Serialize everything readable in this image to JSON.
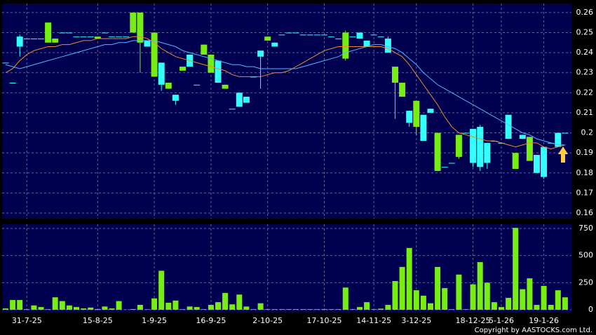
{
  "chart_data": [
    {
      "type": "candlestick",
      "up_color": "#33ffff",
      "down_color": "#77ee11",
      "open": [
        0.235,
        0.225,
        0.243,
        0.247,
        0.247,
        0.247,
        0.255,
        0.247,
        0.25,
        0.25,
        0.248,
        0.248,
        0.248,
        0.248,
        0.25,
        0.248,
        0.248,
        0.248,
        0.26,
        0.26,
        0.243,
        0.25,
        0.224,
        0.225,
        0.216,
        0.233,
        0.233,
        0.224,
        0.244,
        0.239,
        0.225,
        0.224,
        0.212,
        0.213,
        0.215,
        0.228,
        0.238,
        0.248,
        0.243,
        0.249,
        0.25,
        0.25,
        0.249,
        0.249,
        0.249,
        0.249,
        0.248,
        0.247,
        0.25,
        0.248,
        0.247,
        0.243,
        0.249,
        0.248,
        0.24,
        0.233,
        0.225,
        0.205,
        0.216,
        0.196,
        0.21,
        0.2,
        0.183,
        0.185,
        0.199,
        0.2,
        0.185,
        0.183,
        0.185,
        0.196,
        0.195,
        0.197,
        0.19,
        0.197,
        0.198,
        0.18,
        0.178,
        0.195,
        0.193,
        0.2
      ],
      "high": [
        0.235,
        0.225,
        0.249,
        0.247,
        0.247,
        0.247,
        0.255,
        0.247,
        0.25,
        0.25,
        0.248,
        0.248,
        0.248,
        0.248,
        0.25,
        0.248,
        0.248,
        0.248,
        0.26,
        0.26,
        0.246,
        0.25,
        0.235,
        0.225,
        0.219,
        0.233,
        0.239,
        0.224,
        0.244,
        0.239,
        0.236,
        0.224,
        0.212,
        0.22,
        0.218,
        0.228,
        0.241,
        0.248,
        0.245,
        0.249,
        0.25,
        0.25,
        0.249,
        0.249,
        0.249,
        0.249,
        0.248,
        0.247,
        0.251,
        0.248,
        0.25,
        0.246,
        0.249,
        0.248,
        0.248,
        0.233,
        0.225,
        0.211,
        0.216,
        0.209,
        0.212,
        0.2,
        0.183,
        0.185,
        0.199,
        0.2,
        0.202,
        0.204,
        0.195,
        0.196,
        0.195,
        0.209,
        0.19,
        0.199,
        0.198,
        0.189,
        0.193,
        0.195,
        0.2,
        0.2
      ],
      "low": [
        0.235,
        0.225,
        0.238,
        0.247,
        0.247,
        0.247,
        0.245,
        0.245,
        0.25,
        0.25,
        0.248,
        0.248,
        0.248,
        0.247,
        0.25,
        0.248,
        0.248,
        0.248,
        0.25,
        0.23,
        0.243,
        0.228,
        0.221,
        0.222,
        0.214,
        0.231,
        0.233,
        0.224,
        0.239,
        0.23,
        0.225,
        0.222,
        0.212,
        0.213,
        0.215,
        0.228,
        0.222,
        0.246,
        0.243,
        0.249,
        0.25,
        0.25,
        0.249,
        0.249,
        0.249,
        0.249,
        0.248,
        0.247,
        0.236,
        0.248,
        0.247,
        0.243,
        0.249,
        0.248,
        0.24,
        0.207,
        0.218,
        0.203,
        0.199,
        0.196,
        0.21,
        0.181,
        0.183,
        0.185,
        0.187,
        0.2,
        0.183,
        0.181,
        0.182,
        0.196,
        0.195,
        0.197,
        0.182,
        0.197,
        0.186,
        0.18,
        0.177,
        0.195,
        0.193,
        0.2
      ],
      "close": [
        0.235,
        0.225,
        0.248,
        0.247,
        0.247,
        0.247,
        0.245,
        0.245,
        0.25,
        0.25,
        0.248,
        0.248,
        0.248,
        0.247,
        0.25,
        0.248,
        0.248,
        0.248,
        0.25,
        0.245,
        0.246,
        0.228,
        0.235,
        0.222,
        0.219,
        0.231,
        0.239,
        0.224,
        0.239,
        0.23,
        0.236,
        0.222,
        0.212,
        0.22,
        0.218,
        0.228,
        0.241,
        0.246,
        0.245,
        0.249,
        0.25,
        0.25,
        0.249,
        0.249,
        0.249,
        0.249,
        0.248,
        0.247,
        0.237,
        0.248,
        0.25,
        0.246,
        0.249,
        0.248,
        0.247,
        0.225,
        0.218,
        0.211,
        0.203,
        0.209,
        0.212,
        0.181,
        0.183,
        0.185,
        0.188,
        0.2,
        0.202,
        0.203,
        0.195,
        0.196,
        0.195,
        0.209,
        0.182,
        0.199,
        0.186,
        0.189,
        0.193,
        0.195,
        0.2,
        0.2
      ],
      "series": [
        {
          "color": "#f08a2a",
          "values": [
            0.23,
            0.232,
            0.236,
            0.239,
            0.241,
            0.242,
            0.243,
            0.243,
            0.244,
            0.244,
            0.245,
            0.246,
            0.246,
            0.247,
            0.247,
            0.247,
            0.247,
            0.247,
            0.248,
            0.248,
            0.247,
            0.245,
            0.242,
            0.24,
            0.238,
            0.237,
            0.236,
            0.235,
            0.234,
            0.233,
            0.232,
            0.231,
            0.229,
            0.228,
            0.228,
            0.228,
            0.228,
            0.229,
            0.23,
            0.23,
            0.231,
            0.233,
            0.235,
            0.237,
            0.239,
            0.241,
            0.242,
            0.243,
            0.243,
            0.243,
            0.243,
            0.243,
            0.243,
            0.243,
            0.242,
            0.24,
            0.238,
            0.234,
            0.229,
            0.224,
            0.219,
            0.214,
            0.208,
            0.203,
            0.2,
            0.199,
            0.198,
            0.197,
            0.196,
            0.196,
            0.195,
            0.194,
            0.193,
            0.194,
            0.195,
            0.195,
            0.193,
            0.192,
            0.193,
            0.194
          ]
        },
        {
          "color": "#4db8ff",
          "values": [
            0.234,
            0.233,
            0.232,
            0.233,
            0.234,
            0.235,
            0.236,
            0.237,
            0.238,
            0.239,
            0.24,
            0.241,
            0.242,
            0.243,
            0.244,
            0.244,
            0.245,
            0.245,
            0.246,
            0.246,
            0.246,
            0.246,
            0.245,
            0.244,
            0.243,
            0.241,
            0.24,
            0.239,
            0.238,
            0.237,
            0.236,
            0.235,
            0.234,
            0.234,
            0.233,
            0.233,
            0.232,
            0.232,
            0.232,
            0.232,
            0.232,
            0.232,
            0.233,
            0.234,
            0.235,
            0.236,
            0.237,
            0.238,
            0.24,
            0.241,
            0.242,
            0.243,
            0.244,
            0.244,
            0.243,
            0.242,
            0.24,
            0.237,
            0.234,
            0.23,
            0.227,
            0.224,
            0.222,
            0.22,
            0.218,
            0.216,
            0.214,
            0.212,
            0.21,
            0.208,
            0.206,
            0.204,
            0.202,
            0.2,
            0.199,
            0.197,
            0.196,
            0.195,
            0.194,
            0.194
          ]
        }
      ],
      "ylim": [
        0.1572,
        0.2645
      ],
      "yticks": [
        0.16,
        0.17,
        0.18,
        0.19,
        0.2,
        0.21,
        0.22,
        0.23,
        0.24,
        0.25,
        0.26
      ],
      "grid": true
    },
    {
      "type": "bar",
      "color": "#77ee11",
      "categories": [
        null,
        null,
        null,
        "31-7-25",
        null,
        null,
        null,
        null,
        null,
        null,
        null,
        null,
        null,
        "15-8-25",
        null,
        null,
        null,
        null,
        null,
        null,
        null,
        "1-9-25",
        null,
        null,
        null,
        null,
        null,
        null,
        null,
        "16-9-25",
        null,
        null,
        null,
        null,
        null,
        null,
        null,
        "2-10-25",
        null,
        null,
        null,
        null,
        null,
        null,
        null,
        "17-10-25",
        null,
        null,
        null,
        null,
        null,
        null,
        "14-11-25",
        null,
        null,
        null,
        null,
        null,
        "3-12-25",
        null,
        null,
        null,
        null,
        null,
        null,
        null,
        "18-12-25",
        null,
        null,
        null,
        "5-1-26",
        null,
        null,
        null,
        null,
        null,
        "19-1-26",
        null,
        null,
        null
      ],
      "values": [
        12,
        90,
        90,
        5,
        40,
        25,
        5,
        115,
        80,
        40,
        25,
        12,
        20,
        6,
        30,
        12,
        80,
        2,
        6,
        45,
        4,
        105,
        360,
        65,
        85,
        5,
        30,
        25,
        5,
        45,
        70,
        155,
        50,
        140,
        30,
        5,
        60,
        5,
        5,
        5,
        5,
        5,
        5,
        5,
        5,
        5,
        5,
        5,
        205,
        5,
        25,
        70,
        5,
        10,
        45,
        265,
        395,
        570,
        180,
        130,
        60,
        395,
        200,
        5,
        325,
        5,
        235,
        440,
        250,
        70,
        25,
        110,
        756,
        190,
        290,
        45,
        220,
        45,
        180,
        115
      ],
      "ylim": [
        -26,
        789
      ],
      "yticks": [
        0,
        250,
        500,
        750
      ],
      "grid": true
    }
  ],
  "copyright": "Copyright by AASTOCKS.com Ltd."
}
